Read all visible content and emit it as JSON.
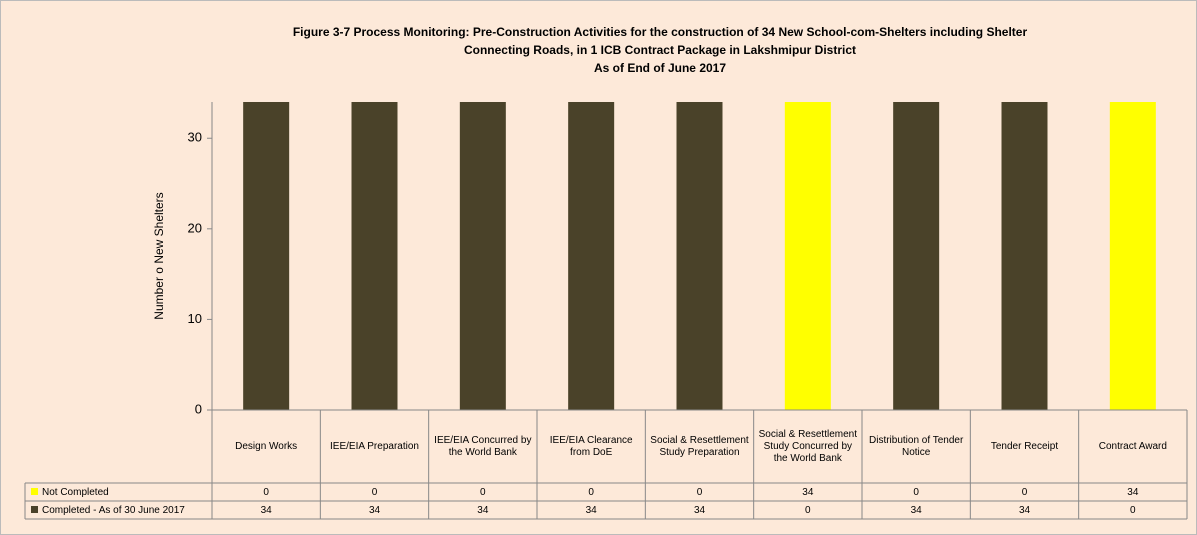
{
  "chart_data": {
    "type": "stacked_bar",
    "title": [
      "Figure 3-7  Process Monitoring: Pre-Construction Activities for the construction of 34 New School-com-Shelters including Shelter",
      "Connecting Roads, in 1 ICB Contract Package in Lakshmipur District",
      "As of End of June 2017"
    ],
    "y_label": "Number o New Shelters",
    "categories": [
      "Design Works",
      "IEE/EIA Preparation",
      "IEE/EIA Concurred by the World Bank",
      "IEE/EIA Clearance from DoE",
      "Social & Resettlement Study Preparation",
      "Social & Resettlement Study Concurred by the World Bank",
      "Distribution of Tender Notice",
      "Tender Receipt",
      "Contract Award"
    ],
    "series": [
      {
        "name": "Not Completed",
        "color": "#ffff00",
        "values": [
          0,
          0,
          0,
          0,
          0,
          34,
          0,
          0,
          34
        ]
      },
      {
        "name": "Completed - As of 30 June 2017",
        "color": "#4a4229",
        "values": [
          34,
          34,
          34,
          34,
          34,
          0,
          34,
          34,
          0
        ]
      }
    ],
    "ylim": [
      0,
      34
    ],
    "yticks": [
      0,
      10,
      20,
      30
    ],
    "grid": false
  }
}
